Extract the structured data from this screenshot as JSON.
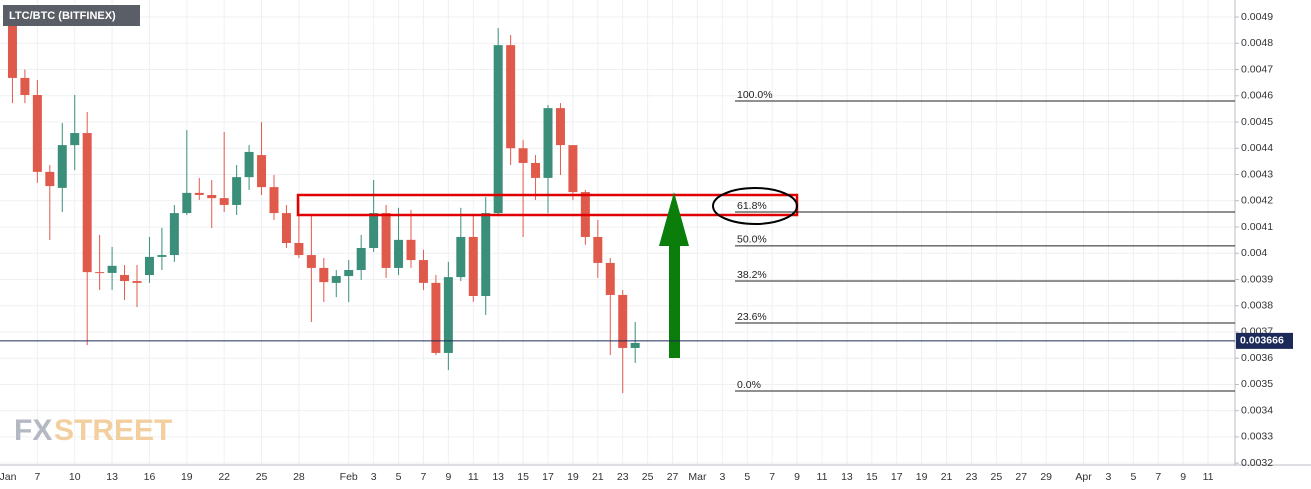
{
  "chart_data": {
    "type": "candlestick",
    "title": "LTC/BTC (BITFINEX)",
    "watermark": [
      "FX",
      "STREET"
    ],
    "x": [
      "01-05",
      "01-06",
      "01-07",
      "01-08",
      "01-09",
      "01-10",
      "01-11",
      "01-12",
      "01-13",
      "01-14",
      "01-15",
      "01-16",
      "01-17",
      "01-18",
      "01-19",
      "01-20",
      "01-21",
      "01-22",
      "01-23",
      "01-24",
      "01-25",
      "01-26",
      "01-27",
      "01-28",
      "01-29",
      "01-30",
      "01-31",
      "02-01",
      "02-02",
      "02-03",
      "02-04",
      "02-05",
      "02-06",
      "02-07",
      "02-08",
      "02-09",
      "02-10",
      "02-11",
      "02-12",
      "02-13",
      "02-14",
      "02-15",
      "02-16",
      "02-17",
      "02-18",
      "02-19",
      "02-20",
      "02-21",
      "02-22",
      "02-23",
      "02-24"
    ],
    "open": [
      0.004896,
      0.004668,
      0.004603,
      0.00431,
      0.004249,
      0.004412,
      0.004458,
      0.003928,
      0.003925,
      0.003917,
      0.003894,
      0.003917,
      0.003986,
      0.003993,
      0.004153,
      0.00423,
      0.004222,
      0.00421,
      0.004184,
      0.00429,
      0.004374,
      0.004252,
      0.004153,
      0.004039,
      0.003993,
      0.003944,
      0.003887,
      0.003913,
      0.003936,
      0.00402,
      0.004153,
      0.003944,
      0.004051,
      0.003974,
      0.003887,
      0.00362,
      0.003909,
      0.004062,
      0.003837,
      0.004153,
      0.004793,
      0.0044,
      0.004344,
      0.004287,
      0.004553,
      0.004412,
      0.004233,
      0.004062,
      0.003963,
      0.003841,
      0.003639
    ],
    "high": [
      0.00493,
      0.0047,
      0.00466,
      0.004336,
      0.004496,
      0.004603,
      0.004538,
      0.00407,
      0.004024,
      0.003955,
      0.003955,
      0.004062,
      0.004097,
      0.004184,
      0.004469,
      0.004287,
      0.004279,
      0.004462,
      0.004336,
      0.004412,
      0.0045,
      0.004298,
      0.004184,
      0.004203,
      0.004146,
      0.003982,
      0.003936,
      0.003974,
      0.00407,
      0.004279,
      0.004184,
      0.004173,
      0.004165,
      0.004013,
      0.003917,
      0.003967,
      0.004173,
      0.004146,
      0.004214,
      0.004858,
      0.004831,
      0.004431,
      0.004374,
      0.004565,
      0.004572,
      0.004412,
      0.004241,
      0.004127,
      0.003982,
      0.00386,
      0.003738
    ],
    "low": [
      0.004572,
      0.004572,
      0.004268,
      0.00405,
      0.004157,
      0.004317,
      0.00365,
      0.00386,
      0.00386,
      0.003822,
      0.003795,
      0.003887,
      0.003936,
      0.003967,
      0.004146,
      0.004203,
      0.004096,
      0.004157,
      0.004146,
      0.004241,
      0.004222,
      0.004127,
      0.00402,
      0.003982,
      0.003738,
      0.003814,
      0.003833,
      0.003814,
      0.003898,
      0.004005,
      0.003906,
      0.003917,
      0.003944,
      0.00386,
      0.003612,
      0.003555,
      0.003894,
      0.003815,
      0.003765,
      0.004146,
      0.004336,
      0.004062,
      0.004203,
      0.004153,
      0.004298,
      0.004203,
      0.004032,
      0.003906,
      0.003612,
      0.003467,
      0.003582
    ],
    "close": [
      0.004668,
      0.004603,
      0.00431,
      0.004256,
      0.004412,
      0.004458,
      0.003928,
      0.003925,
      0.003952,
      0.003894,
      0.003887,
      0.003986,
      0.003993,
      0.004153,
      0.00423,
      0.004222,
      0.00421,
      0.004184,
      0.00429,
      0.004386,
      0.004252,
      0.004153,
      0.004039,
      0.003993,
      0.003944,
      0.00389,
      0.003913,
      0.003936,
      0.00402,
      0.004153,
      0.003944,
      0.004051,
      0.003974,
      0.003887,
      0.00362,
      0.003909,
      0.004062,
      0.003837,
      0.004153,
      0.004793,
      0.0044,
      0.004344,
      0.004287,
      0.004553,
      0.004412,
      0.004233,
      0.004062,
      0.003963,
      0.003841,
      0.003639,
      0.003658
    ],
    "up_color": "#3b8e7a",
    "down_color": "#e05a4b",
    "xlim": [
      "01-04",
      "04-13"
    ],
    "xticks": [
      {
        "value": "01-01",
        "label": "Jan"
      },
      {
        "value": "01-07",
        "label": "7"
      },
      {
        "value": "01-10",
        "label": "10"
      },
      {
        "value": "01-13",
        "label": "13"
      },
      {
        "value": "01-16",
        "label": "16"
      },
      {
        "value": "01-19",
        "label": "19"
      },
      {
        "value": "01-22",
        "label": "22"
      },
      {
        "value": "01-25",
        "label": "25"
      },
      {
        "value": "01-28",
        "label": "28"
      },
      {
        "value": "02-01",
        "label": "Feb"
      },
      {
        "value": "02-03",
        "label": "3"
      },
      {
        "value": "02-05",
        "label": "5"
      },
      {
        "value": "02-07",
        "label": "7"
      },
      {
        "value": "02-09",
        "label": "9"
      },
      {
        "value": "02-11",
        "label": "11"
      },
      {
        "value": "02-13",
        "label": "13"
      },
      {
        "value": "02-15",
        "label": "15"
      },
      {
        "value": "02-17",
        "label": "17"
      },
      {
        "value": "02-19",
        "label": "19"
      },
      {
        "value": "02-21",
        "label": "21"
      },
      {
        "value": "02-23",
        "label": "23"
      },
      {
        "value": "02-25",
        "label": "25"
      },
      {
        "value": "02-27",
        "label": "27"
      },
      {
        "value": "03-01",
        "label": "Mar"
      },
      {
        "value": "03-03",
        "label": "3"
      },
      {
        "value": "03-05",
        "label": "5"
      },
      {
        "value": "03-07",
        "label": "7"
      },
      {
        "value": "03-09",
        "label": "9"
      },
      {
        "value": "03-11",
        "label": "11"
      },
      {
        "value": "03-13",
        "label": "13"
      },
      {
        "value": "03-15",
        "label": "15"
      },
      {
        "value": "03-17",
        "label": "17"
      },
      {
        "value": "03-19",
        "label": "19"
      },
      {
        "value": "03-21",
        "label": "21"
      },
      {
        "value": "03-23",
        "label": "23"
      },
      {
        "value": "03-25",
        "label": "25"
      },
      {
        "value": "03-27",
        "label": "27"
      },
      {
        "value": "03-29",
        "label": "29"
      },
      {
        "value": "04-01",
        "label": "Apr"
      },
      {
        "value": "04-03",
        "label": "3"
      },
      {
        "value": "04-05",
        "label": "5"
      },
      {
        "value": "04-07",
        "label": "7"
      },
      {
        "value": "04-09",
        "label": "9"
      },
      {
        "value": "04-11",
        "label": "11"
      }
    ],
    "ylim": [
      0.003193,
      0.004965
    ],
    "yticks": [
      0.0032,
      0.0033,
      0.0034,
      0.0035,
      0.0036,
      0.0037,
      0.0038,
      0.0039,
      0.004,
      0.0041,
      0.0042,
      0.0043,
      0.0044,
      0.0045,
      0.0046,
      0.0047,
      0.0048,
      0.0049
    ],
    "grid": true,
    "fib_levels": [
      {
        "label": "100.0%",
        "value": 0.00458
      },
      {
        "label": "61.8%",
        "value": 0.004157
      },
      {
        "label": "50.0%",
        "value": 0.004028
      },
      {
        "label": "38.2%",
        "value": 0.003894
      },
      {
        "label": "23.6%",
        "value": 0.003734
      },
      {
        "label": "0.0%",
        "value": 0.003475
      }
    ],
    "last_price": {
      "value": 0.003666,
      "label": "0.003666"
    }
  }
}
